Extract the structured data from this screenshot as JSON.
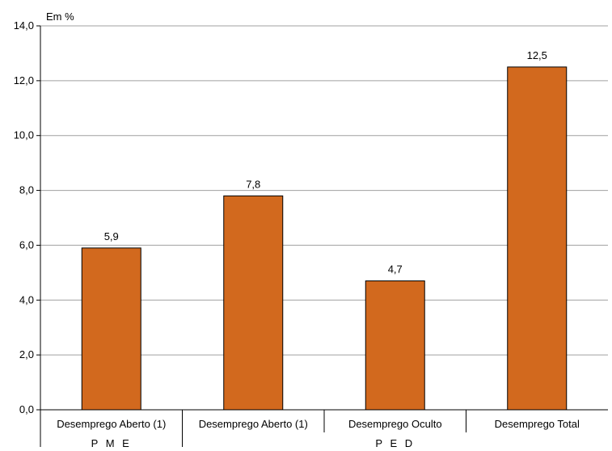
{
  "chart_data": {
    "type": "bar",
    "unit_label": "Em %",
    "categories": [
      "Desemprego Aberto (1)",
      "Desemprego Aberto (1)",
      "Desemprego Oculto",
      "Desemprego Total"
    ],
    "groups": [
      {
        "label": "PME",
        "span": [
          0,
          0
        ]
      },
      {
        "label": "PED",
        "span": [
          1,
          3
        ]
      }
    ],
    "values": [
      5.9,
      7.8,
      4.7,
      12.5
    ],
    "value_labels": [
      "5,9",
      "7,8",
      "4,7",
      "12,5"
    ],
    "ylim": [
      0,
      14
    ],
    "yticks": [
      0,
      2,
      4,
      6,
      8,
      10,
      12,
      14
    ],
    "ytick_labels": [
      "0,0",
      "2,0",
      "4,0",
      "6,0",
      "8,0",
      "10,0",
      "12,0",
      "14,0"
    ],
    "grid": true,
    "bar_color": "#d2691e",
    "bar_edge_color": "#000000",
    "grid_color": "#a0a0a0"
  }
}
